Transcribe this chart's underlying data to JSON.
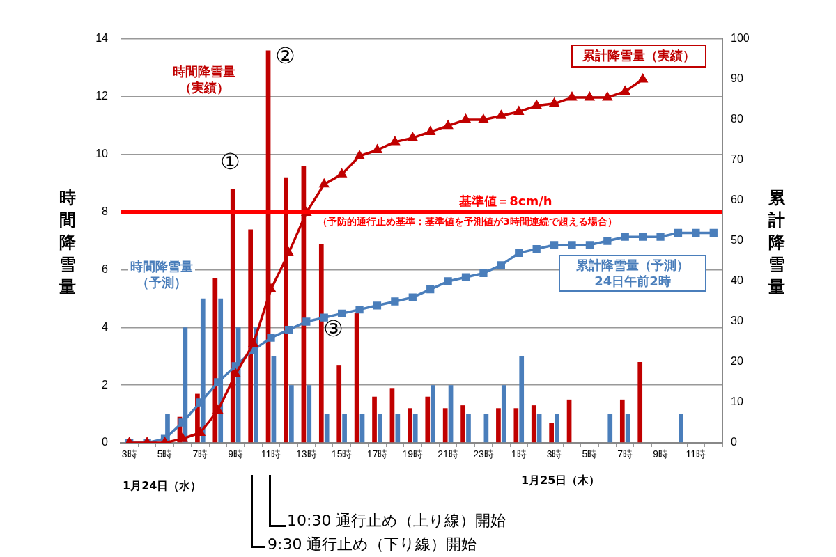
{
  "chart_data": {
    "type": "bar",
    "categories": [
      "3時",
      null,
      "5時",
      null,
      "7時",
      null,
      "9時",
      null,
      "11時",
      null,
      "13時",
      null,
      "15時",
      null,
      "17時",
      null,
      "19時",
      null,
      "21時",
      null,
      "23時",
      null,
      "1時",
      null,
      "3時",
      null,
      "5時",
      null,
      "7時",
      null,
      "9時",
      null,
      "11時",
      null
    ],
    "series": [
      {
        "name": "時間降雪量（実績）",
        "color": "#c00000",
        "values": [
          0,
          0,
          0,
          0.9,
          1.7,
          5.7,
          8.8,
          7.4,
          13.6,
          9.2,
          9.6,
          6.9,
          2.7,
          4.5,
          1.6,
          1.9,
          1.2,
          1.6,
          1.2,
          1.3,
          0,
          1.2,
          1.2,
          1.3,
          0.7,
          1.5,
          0,
          0,
          1.5,
          2.8,
          null,
          null,
          null,
          null
        ]
      },
      {
        "name": "時間降雪量（予測）",
        "color": "#4a7ebb",
        "values": [
          0,
          0,
          1,
          4,
          5,
          5,
          4,
          4,
          3,
          2,
          2,
          1,
          1,
          1,
          1,
          1,
          1,
          2,
          2,
          1,
          1,
          2,
          3,
          1,
          1,
          0,
          0,
          1,
          1,
          0,
          0,
          1,
          0,
          0
        ]
      },
      {
        "name": "累計降雪量（実績）",
        "type": "line",
        "axis": "y2",
        "marker": "triangle",
        "color": "#c00000",
        "values": [
          0,
          0,
          0,
          1,
          2.5,
          8,
          17,
          24.5,
          38,
          47,
          57,
          64,
          66.5,
          71,
          72.5,
          74.5,
          75.5,
          77,
          78.5,
          80,
          80,
          81,
          82,
          83.5,
          84,
          85.5,
          85.5,
          85.5,
          87,
          90,
          null,
          null,
          null,
          null
        ]
      },
      {
        "name": "累計降雪量（予測）24日午前2時",
        "type": "line",
        "axis": "y2",
        "marker": "square",
        "color": "#4a7ebb",
        "values": [
          0,
          0,
          1,
          5,
          10,
          15,
          19,
          23,
          26,
          28,
          30,
          31,
          32,
          33,
          34,
          35,
          36,
          38,
          40,
          41,
          42,
          44,
          47,
          48,
          49,
          49,
          49,
          50,
          51,
          51,
          51,
          52,
          52,
          52
        ]
      }
    ],
    "ylabel": "時間降雪量",
    "y2label": "累計降雪量",
    "ylim": [
      0,
      14
    ],
    "yticks": [
      0,
      2,
      4,
      6,
      8,
      10,
      12,
      14
    ],
    "y2lim": [
      0,
      100
    ],
    "y2ticks": [
      0,
      10,
      20,
      30,
      40,
      50,
      60,
      70,
      80,
      90,
      100
    ],
    "ref_lines": [
      {
        "axis": "y",
        "value": 8,
        "label": "基準値＝8cm/h",
        "color": "#ff0000"
      }
    ],
    "annotations": [
      "①",
      "②",
      "③",
      "（予防的通行止め基準：基準値を予測値が3時間連続で超える場合）",
      "1月24日（水）",
      "1月25日（木）",
      "10:30 通行止め（上り線）開始",
      "9:30 通行止め（下り線）開始"
    ],
    "grid": "y",
    "legend": false,
    "line_style": "solid"
  }
}
